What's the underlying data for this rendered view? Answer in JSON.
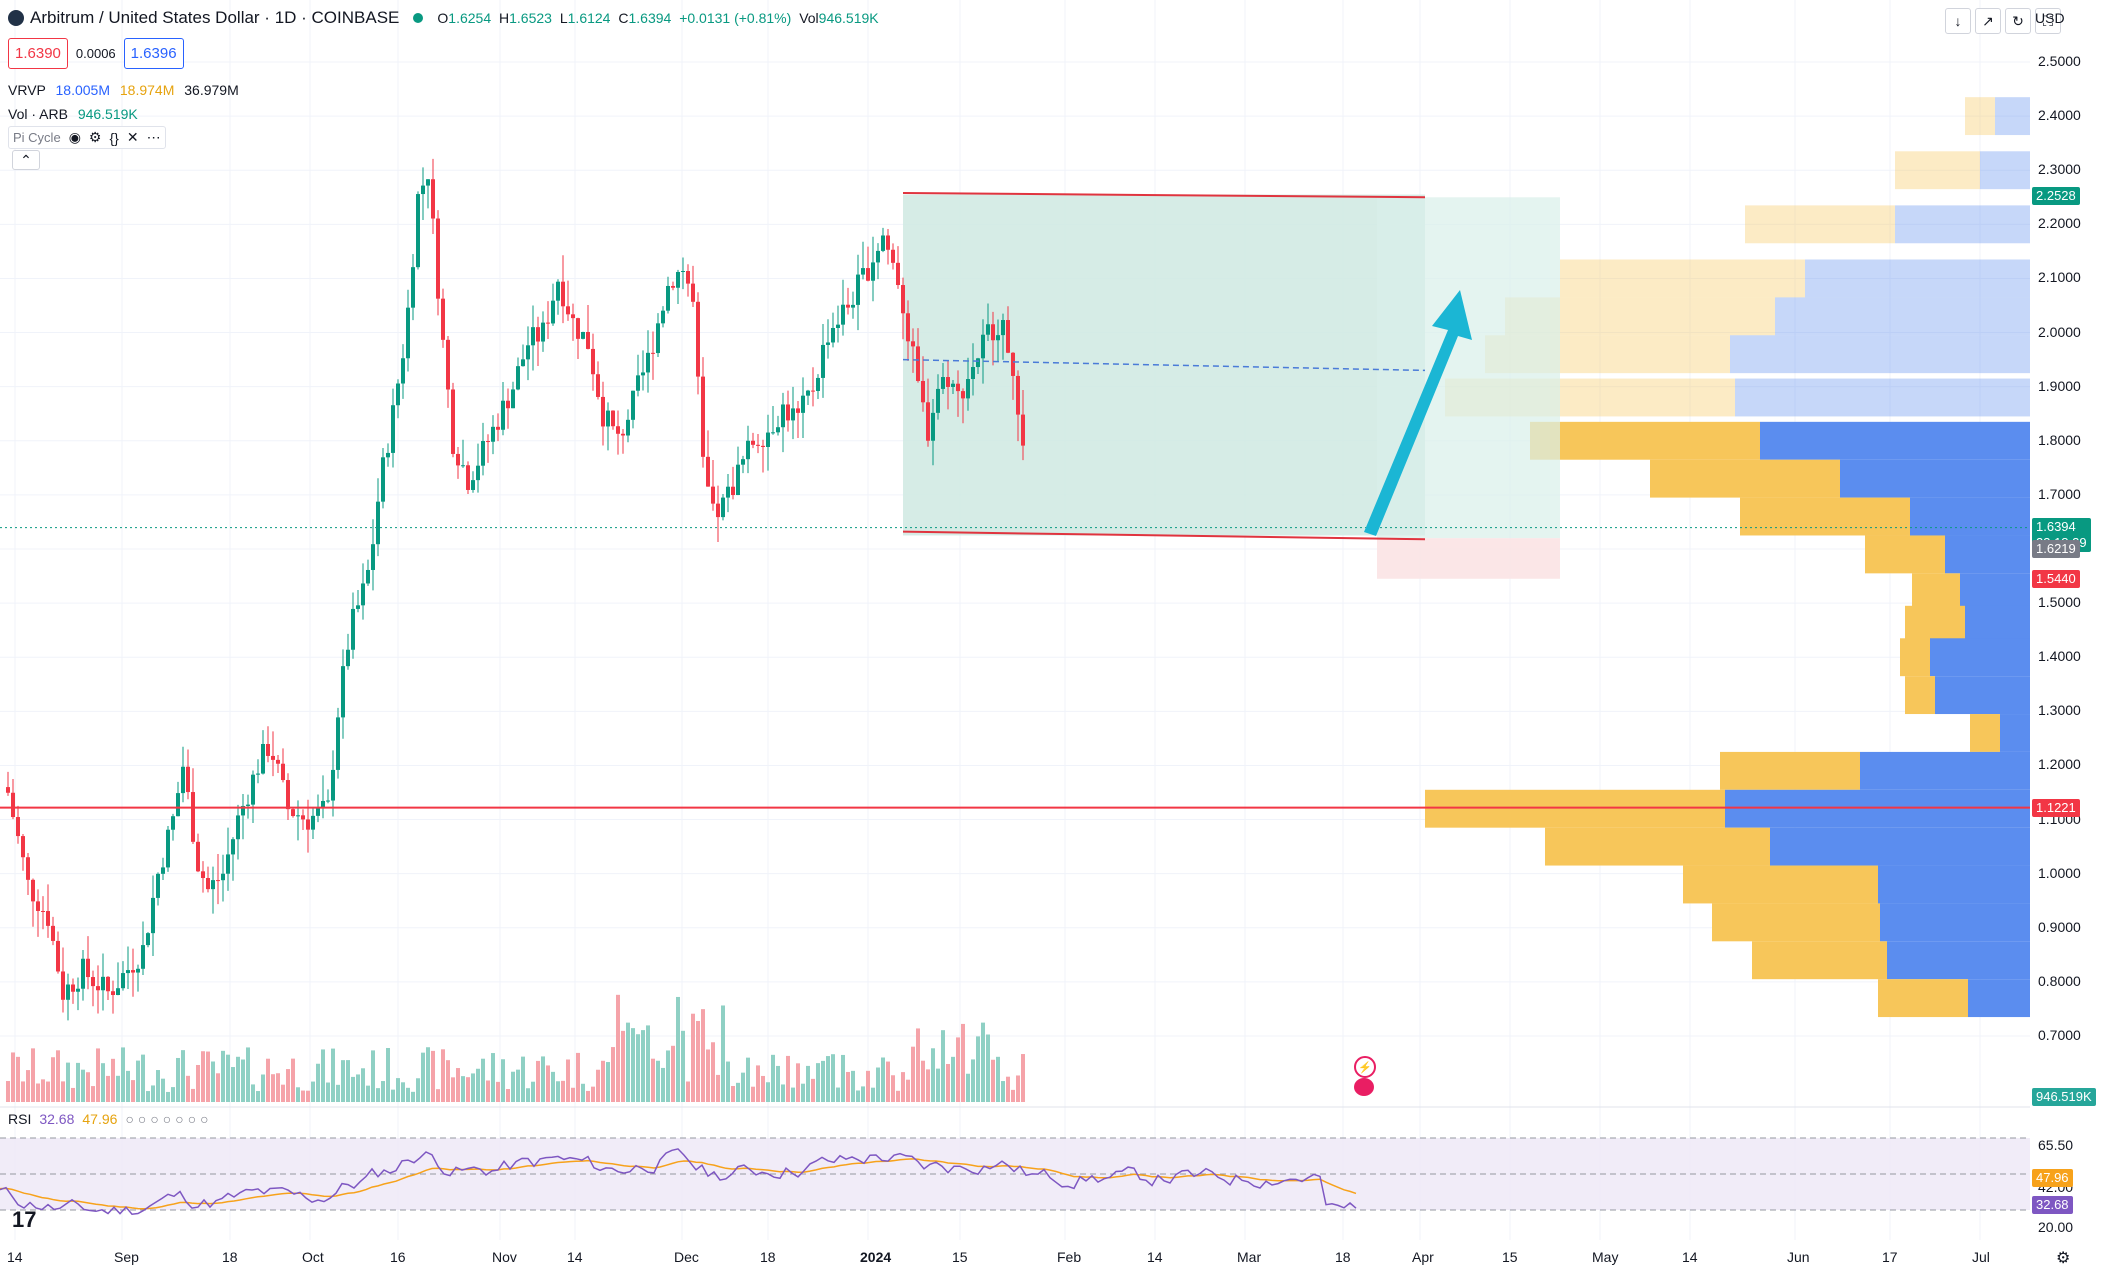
{
  "header": {
    "symbol_title": "Arbitrum / United States Dollar · 1D · COINBASE",
    "open_label": "O",
    "open": "1.6254",
    "high_label": "H",
    "high": "1.6523",
    "low_label": "L",
    "low": "1.6124",
    "close_label": "C",
    "close": "1.6394",
    "change": "+0.0131 (+0.81%)",
    "vol_label": "Vol",
    "vol": "946.519K"
  },
  "trade": {
    "sell_price": "1.6390",
    "spread": "0.0006",
    "buy_price": "1.6396"
  },
  "indicators": {
    "vrvp_label": "VRVP",
    "vrvp_up": "18.005M",
    "vrvp_down": "18.974M",
    "vrvp_total": "36.979M",
    "vol_label": "Vol · ARB",
    "vol_value": "946.519K",
    "pi_cycle_label": "Pi Cycle",
    "rsi_label": "RSI",
    "rsi_value": "32.68",
    "rsi_ma": "47.96"
  },
  "top_right": {
    "currency": "USD"
  },
  "colors": {
    "up": "#089981",
    "down": "#f23645",
    "vrvp_up": "#5b8def",
    "vrvp_down": "#f7c65a",
    "arrow": "#1bb6d4",
    "range_fill": "#cfe9e2",
    "rsi_line": "#7e57c2",
    "rsi_ma": "#f7a21b"
  },
  "price_axis": {
    "ticks": [
      "2.5000",
      "2.4000",
      "2.3000",
      "2.2000",
      "2.1000",
      "2.0000",
      "1.9000",
      "1.8000",
      "1.7000",
      "1.5000",
      "1.4000",
      "1.3000",
      "1.2000",
      "1.1000",
      "1.0000",
      "0.9000",
      "0.8000",
      "0.7000"
    ],
    "tag_high": "2.2528",
    "tag_last": "1.6394",
    "tag_countdown": "23:18:29",
    "tag_prev": "1.6219",
    "tag_stop": "1.5440",
    "tag_support": "1.1221",
    "tag_volume": "946.519K"
  },
  "rsi_axis": {
    "ticks": [
      "65.50",
      "42.00",
      "20.00"
    ],
    "tag_ma": "47.96",
    "tag_rsi": "32.68"
  },
  "time_axis": [
    "14",
    "Sep",
    "18",
    "Oct",
    "16",
    "Nov",
    "14",
    "Dec",
    "18",
    "2024",
    "15",
    "Feb",
    "14",
    "Mar",
    "18",
    "Apr",
    "15",
    "May",
    "14",
    "Jun",
    "17",
    "Jul"
  ],
  "chart_data": {
    "type": "candlestick",
    "price_range": [
      0.6,
      2.5
    ],
    "range_box": {
      "top": 2.25,
      "bottom": 1.625,
      "mid": 1.94
    },
    "support_line": 1.1221,
    "rsi_levels": [
      70,
      50,
      30
    ]
  }
}
